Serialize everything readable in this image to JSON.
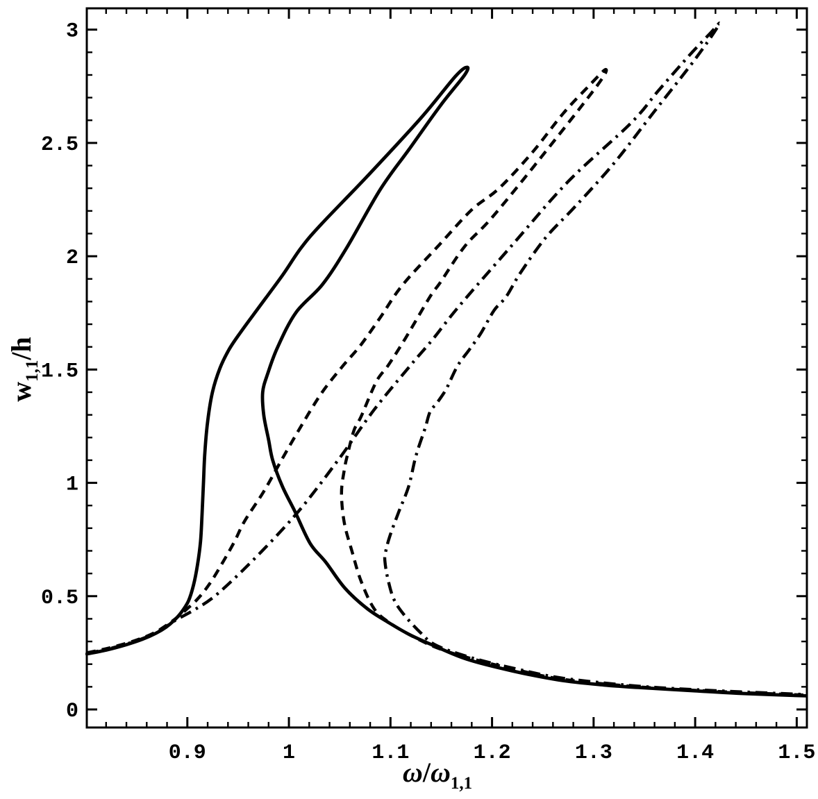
{
  "chart_data": {
    "type": "line",
    "title": "",
    "xlabel": "ω/ω1,1",
    "ylabel": "w1,1/h",
    "xlabel_parts": {
      "numerator": "ω",
      "slash": "/",
      "denominator": "ω",
      "denominator_sub": "1,1"
    },
    "ylabel_parts": {
      "main": "w",
      "sub": "1,1",
      "suffix": "/h"
    },
    "xlim": [
      0.801,
      1.51
    ],
    "ylim": [
      -0.0796,
      3.094
    ],
    "grid": false,
    "legend": null,
    "frame": true,
    "ticks_mirrored": true,
    "colors": {
      "curve": "#000000",
      "frame": "#000000",
      "background": "#ffffff"
    },
    "x_ticks": {
      "major_values": [
        0.9,
        1.0,
        1.1,
        1.2,
        1.3,
        1.4,
        1.5
      ],
      "major_labels": [
        "0.9",
        "1",
        "1.1",
        "1.2",
        "1.3",
        "1.4",
        "1.5"
      ],
      "minor_values": [
        0.82,
        0.84,
        0.86,
        0.88,
        0.92,
        0.94,
        0.96,
        0.98,
        1.02,
        1.04,
        1.06,
        1.08,
        1.12,
        1.14,
        1.16,
        1.18,
        1.22,
        1.24,
        1.26,
        1.28,
        1.32,
        1.34,
        1.36,
        1.38,
        1.42,
        1.44,
        1.46,
        1.48
      ]
    },
    "y_ticks": {
      "major_values": [
        0,
        0.5,
        1.0,
        1.5,
        2.0,
        2.5,
        3.0
      ],
      "major_labels": [
        "0",
        "0.5",
        "1",
        "1.5",
        "2",
        "2.5",
        "3"
      ],
      "minor_values": [
        0.1,
        0.2,
        0.3,
        0.4,
        0.6,
        0.7,
        0.8,
        0.9,
        1.1,
        1.2,
        1.3,
        1.4,
        1.6,
        1.7,
        1.8,
        1.9,
        2.1,
        2.2,
        2.3,
        2.4,
        2.6,
        2.7,
        2.8,
        2.9
      ]
    },
    "series": [
      {
        "name": "solid",
        "line_style": "solid",
        "peak": [
          1.175,
          2.83
        ],
        "points": [
          [
            0.801,
            0.245
          ],
          [
            0.82,
            0.262
          ],
          [
            0.84,
            0.286
          ],
          [
            0.856,
            0.31
          ],
          [
            0.869,
            0.336
          ],
          [
            0.879,
            0.363
          ],
          [
            0.887,
            0.393
          ],
          [
            0.894,
            0.428
          ],
          [
            0.901,
            0.478
          ],
          [
            0.906,
            0.548
          ],
          [
            0.91,
            0.638
          ],
          [
            0.913,
            0.742
          ],
          [
            0.9145,
            0.862
          ],
          [
            0.9158,
            0.992
          ],
          [
            0.9172,
            1.132
          ],
          [
            0.92,
            1.272
          ],
          [
            0.9248,
            1.402
          ],
          [
            0.932,
            1.505
          ],
          [
            0.941,
            1.588
          ],
          [
            0.952,
            1.662
          ],
          [
            0.97,
            1.772
          ],
          [
            0.9935,
            1.915
          ],
          [
            1.012,
            2.037
          ],
          [
            1.032,
            2.142
          ],
          [
            1.0795,
            2.364
          ],
          [
            1.13,
            2.61
          ],
          [
            1.164,
            2.794
          ],
          [
            1.1752,
            2.834
          ],
          [
            1.173,
            2.8
          ],
          [
            1.15,
            2.67
          ],
          [
            1.118,
            2.47
          ],
          [
            1.09,
            2.295
          ],
          [
            1.057,
            2.038
          ],
          [
            1.033,
            1.875
          ],
          [
            1.007,
            1.752
          ],
          [
            0.989,
            1.6
          ],
          [
            0.979,
            1.48
          ],
          [
            0.9742,
            1.4
          ],
          [
            0.9752,
            1.3
          ],
          [
            0.98,
            1.19
          ],
          [
            0.984,
            1.1
          ],
          [
            0.9935,
            0.985
          ],
          [
            1.006,
            0.873
          ],
          [
            1.021,
            0.732
          ],
          [
            1.0365,
            0.649
          ],
          [
            1.055,
            0.536
          ],
          [
            1.077,
            0.445
          ],
          [
            1.098,
            0.384
          ],
          [
            1.118,
            0.332
          ],
          [
            1.141,
            0.285
          ],
          [
            1.175,
            0.222
          ],
          [
            1.22,
            0.17
          ],
          [
            1.266,
            0.13
          ],
          [
            1.31,
            0.108
          ],
          [
            1.344,
            0.097
          ],
          [
            1.4,
            0.082
          ],
          [
            1.45,
            0.07
          ],
          [
            1.509,
            0.06
          ]
        ]
      },
      {
        "name": "dashed",
        "line_style": "dashed",
        "peak": [
          1.312,
          2.82
        ],
        "points": [
          [
            0.801,
            0.25
          ],
          [
            0.82,
            0.268
          ],
          [
            0.84,
            0.292
          ],
          [
            0.856,
            0.316
          ],
          [
            0.869,
            0.342
          ],
          [
            0.879,
            0.37
          ],
          [
            0.889,
            0.403
          ],
          [
            0.9,
            0.445
          ],
          [
            0.91,
            0.487
          ],
          [
            0.922,
            0.555
          ],
          [
            0.935,
            0.65
          ],
          [
            0.9464,
            0.741
          ],
          [
            0.9566,
            0.833
          ],
          [
            0.975,
            0.96
          ],
          [
            0.991,
            1.087
          ],
          [
            1.01,
            1.235
          ],
          [
            1.0317,
            1.393
          ],
          [
            1.052,
            1.51
          ],
          [
            1.0707,
            1.608
          ],
          [
            1.09,
            1.73
          ],
          [
            1.112,
            1.874
          ],
          [
            1.1478,
            2.049
          ],
          [
            1.18,
            2.205
          ],
          [
            1.207,
            2.3
          ],
          [
            1.24,
            2.46
          ],
          [
            1.27,
            2.63
          ],
          [
            1.295,
            2.75
          ],
          [
            1.3117,
            2.824
          ],
          [
            1.3035,
            2.753
          ],
          [
            1.248,
            2.435
          ],
          [
            1.2,
            2.171
          ],
          [
            1.173,
            2.043
          ],
          [
            1.149,
            1.884
          ],
          [
            1.139,
            1.822
          ],
          [
            1.115,
            1.64
          ],
          [
            1.098,
            1.52
          ],
          [
            1.086,
            1.446
          ],
          [
            1.071,
            1.292
          ],
          [
            1.064,
            1.231
          ],
          [
            1.058,
            1.13
          ],
          [
            1.0545,
            1.057
          ],
          [
            1.0518,
            0.955
          ],
          [
            1.0545,
            0.824
          ],
          [
            1.062,
            0.7
          ],
          [
            1.071,
            0.567
          ],
          [
            1.084,
            0.444
          ],
          [
            1.1,
            0.38
          ],
          [
            1.125,
            0.315
          ],
          [
            1.15,
            0.265
          ],
          [
            1.18,
            0.224
          ],
          [
            1.225,
            0.174
          ],
          [
            1.27,
            0.133
          ],
          [
            1.344,
            0.1
          ],
          [
            1.42,
            0.08
          ],
          [
            1.509,
            0.063
          ]
        ]
      },
      {
        "name": "dash-dot",
        "line_style": "dashdot",
        "peak": [
          1.424,
          3.03
        ],
        "points": [
          [
            0.801,
            0.248
          ],
          [
            0.82,
            0.265
          ],
          [
            0.84,
            0.289
          ],
          [
            0.856,
            0.313
          ],
          [
            0.869,
            0.339
          ],
          [
            0.879,
            0.366
          ],
          [
            0.89,
            0.398
          ],
          [
            0.907,
            0.44
          ],
          [
            0.927,
            0.5
          ],
          [
            0.956,
            0.62
          ],
          [
            0.989,
            0.772
          ],
          [
            1.016,
            0.91
          ],
          [
            1.05,
            1.11
          ],
          [
            1.084,
            1.323
          ],
          [
            1.12,
            1.52
          ],
          [
            1.141,
            1.63
          ],
          [
            1.168,
            1.782
          ],
          [
            1.22,
            2.05
          ],
          [
            1.275,
            2.33
          ],
          [
            1.3368,
            2.588
          ],
          [
            1.364,
            2.732
          ],
          [
            1.394,
            2.885
          ],
          [
            1.415,
            2.985
          ],
          [
            1.424,
            3.029
          ],
          [
            1.416,
            2.97
          ],
          [
            1.395,
            2.84
          ],
          [
            1.36,
            2.64
          ],
          [
            1.32,
            2.41
          ],
          [
            1.282,
            2.22
          ],
          [
            1.253,
            2.083
          ],
          [
            1.228,
            1.927
          ],
          [
            1.214,
            1.822
          ],
          [
            1.202,
            1.761
          ],
          [
            1.189,
            1.66
          ],
          [
            1.178,
            1.59
          ],
          [
            1.166,
            1.516
          ],
          [
            1.155,
            1.415
          ],
          [
            1.146,
            1.354
          ],
          [
            1.139,
            1.314
          ],
          [
            1.134,
            1.24
          ],
          [
            1.125,
            1.118
          ],
          [
            1.118,
            0.986
          ],
          [
            1.108,
            0.87
          ],
          [
            1.099,
            0.76
          ],
          [
            1.095,
            0.69
          ],
          [
            1.0945,
            0.655
          ],
          [
            1.097,
            0.585
          ],
          [
            1.103,
            0.49
          ],
          [
            1.113,
            0.42
          ],
          [
            1.13,
            0.337
          ],
          [
            1.145,
            0.283
          ],
          [
            1.18,
            0.228
          ],
          [
            1.225,
            0.178
          ],
          [
            1.27,
            0.138
          ],
          [
            1.344,
            0.103
          ],
          [
            1.42,
            0.083
          ],
          [
            1.509,
            0.066
          ]
        ]
      }
    ]
  }
}
